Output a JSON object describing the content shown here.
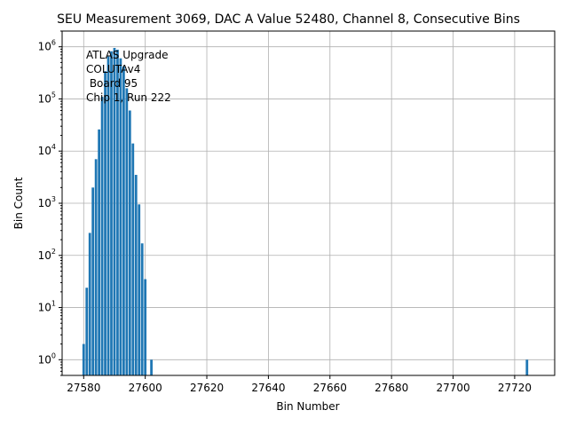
{
  "chart_data": {
    "type": "bar",
    "title": "SEU Measurement 3069, DAC A Value 52480, Channel 8, Consecutive Bins",
    "xlabel": "Bin Number",
    "ylabel": "Bin Count",
    "yscale": "log",
    "xlim": [
      27573,
      27733
    ],
    "ylim": [
      0.5,
      2000000
    ],
    "grid": true,
    "bar_color": "#1f77b4",
    "xticks": [
      27580,
      27600,
      27620,
      27640,
      27660,
      27680,
      27700,
      27720
    ],
    "xtick_labels": [
      "27580",
      "27600",
      "27620",
      "27640",
      "27660",
      "27680",
      "27700",
      "27720"
    ],
    "yticks": [
      1,
      10,
      100,
      1000,
      10000,
      100000,
      1000000
    ],
    "ytick_labels": [
      {
        "base": "10",
        "exp": "0"
      },
      {
        "base": "10",
        "exp": "1"
      },
      {
        "base": "10",
        "exp": "2"
      },
      {
        "base": "10",
        "exp": "3"
      },
      {
        "base": "10",
        "exp": "4"
      },
      {
        "base": "10",
        "exp": "5"
      },
      {
        "base": "10",
        "exp": "6"
      }
    ],
    "annotation": [
      "ATLAS Upgrade",
      "COLUTAv4",
      " Board 95",
      "Chip 1, Run 222"
    ],
    "x": [
      27580,
      27581,
      27582,
      27583,
      27584,
      27585,
      27586,
      27587,
      27588,
      27589,
      27590,
      27591,
      27592,
      27593,
      27594,
      27595,
      27596,
      27597,
      27598,
      27599,
      27600,
      27602,
      27724
    ],
    "values": [
      2,
      24,
      270,
      2000,
      7000,
      26000,
      110000,
      340000,
      650000,
      820000,
      950000,
      880000,
      600000,
      420000,
      160000,
      60000,
      14000,
      3500,
      950,
      170,
      35,
      1,
      1
    ]
  }
}
